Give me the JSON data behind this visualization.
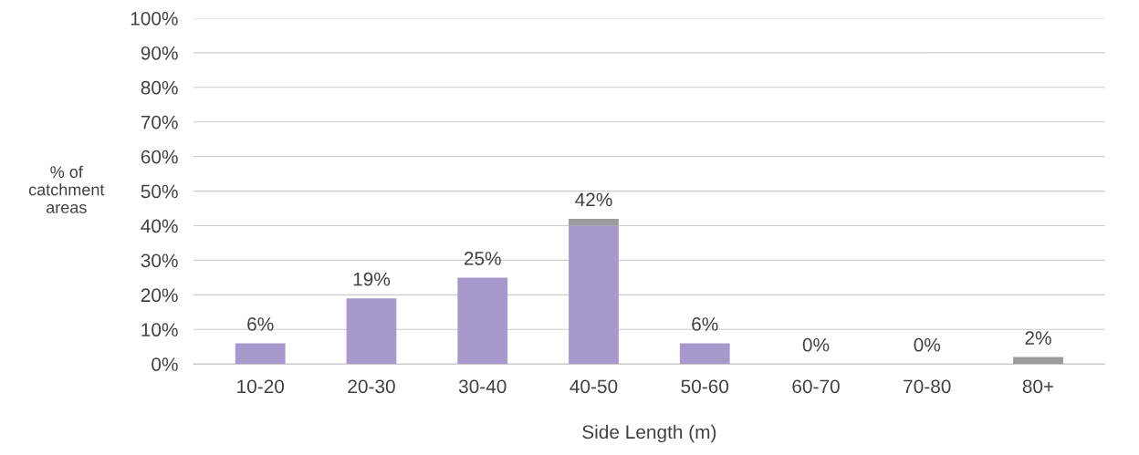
{
  "chart_data": {
    "type": "bar",
    "stacked": true,
    "xlabel": "Side Length (m)",
    "ylabel": "% of\ncatchment\nareas",
    "categories": [
      "10-20",
      "20-30",
      "30-40",
      "40-50",
      "50-60",
      "60-70",
      "70-80",
      "80+"
    ],
    "series": [
      {
        "color": "#a899cc",
        "values": [
          6,
          19,
          25,
          40,
          6,
          0,
          0,
          0
        ]
      },
      {
        "color": "#9b9b9b",
        "values": [
          0,
          0,
          0,
          2,
          0,
          0,
          0,
          2
        ]
      }
    ],
    "totals": [
      "6%",
      "19%",
      "25%",
      "42%",
      "6%",
      "0%",
      "0%",
      "2%"
    ],
    "ylim": [
      0,
      100
    ],
    "yticks": [
      {
        "value": 0,
        "label": "0%"
      },
      {
        "value": 10,
        "label": "10%"
      },
      {
        "value": 20,
        "label": "20%"
      },
      {
        "value": 30,
        "label": "30%"
      },
      {
        "value": 40,
        "label": "40%"
      },
      {
        "value": 50,
        "label": "50%"
      },
      {
        "value": 60,
        "label": "60%"
      },
      {
        "value": 70,
        "label": "70%"
      },
      {
        "value": 80,
        "label": "80%"
      },
      {
        "value": 90,
        "label": "90%"
      },
      {
        "value": 100,
        "label": "100%"
      }
    ],
    "grid": "y",
    "legend": false
  }
}
